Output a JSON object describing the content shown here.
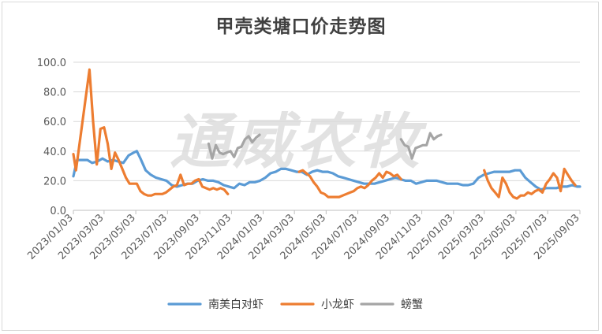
{
  "chart_data": {
    "type": "line",
    "title": "甲壳类塘口价走势图",
    "watermark": "通威农牧",
    "xlabel": "",
    "ylabel": "",
    "ylim": [
      0,
      100
    ],
    "yticks": [
      "0.0",
      "20.0",
      "40.0",
      "60.0",
      "80.0",
      "100.0"
    ],
    "xticks": [
      "2023/01/03",
      "2023/03/03",
      "2023/05/03",
      "2023/07/03",
      "2023/09/03",
      "2023/11/03",
      "2024/01/03",
      "2024/03/03",
      "2024/05/03",
      "2024/07/03",
      "2024/09/03",
      "2024/11/03",
      "2025/01/03",
      "2025/03/03",
      "2025/05/03",
      "2025/07/03",
      "2025/09/03"
    ],
    "grid": "horizontal",
    "legend": "bottom",
    "series": [
      {
        "name": "南美白对虾",
        "color": "#5b9bd5",
        "points": [
          [
            "2023/01/03",
            23
          ],
          [
            "2023/01/10",
            34
          ],
          [
            "2023/01/20",
            34
          ],
          [
            "2023/01/30",
            34
          ],
          [
            "2023/02/08",
            32
          ],
          [
            "2023/02/18",
            33
          ],
          [
            "2023/02/28",
            35
          ],
          [
            "2023/03/10",
            33
          ],
          [
            "2023/03/20",
            34
          ],
          [
            "2023/03/30",
            33
          ],
          [
            "2023/04/09",
            32
          ],
          [
            "2023/04/19",
            37
          ],
          [
            "2023/04/29",
            39
          ],
          [
            "2023/05/05",
            40
          ],
          [
            "2023/05/12",
            35
          ],
          [
            "2023/05/22",
            27
          ],
          [
            "2023/06/01",
            24
          ],
          [
            "2023/06/11",
            22
          ],
          [
            "2023/06/21",
            21
          ],
          [
            "2023/07/01",
            20
          ],
          [
            "2023/07/11",
            17
          ],
          [
            "2023/07/21",
            16
          ],
          [
            "2023/07/31",
            17
          ],
          [
            "2023/08/10",
            18
          ],
          [
            "2023/08/20",
            18
          ],
          [
            "2023/08/30",
            20
          ],
          [
            "2023/09/09",
            21
          ],
          [
            "2023/09/19",
            20
          ],
          [
            "2023/09/29",
            20
          ],
          [
            "2023/10/09",
            19
          ],
          [
            "2023/10/19",
            17
          ],
          [
            "2023/10/29",
            16
          ],
          [
            "2023/11/08",
            15
          ],
          [
            "2023/11/18",
            18
          ],
          [
            "2023/11/28",
            17
          ],
          [
            "2023/12/08",
            19
          ],
          [
            "2023/12/18",
            19
          ],
          [
            "2023/12/28",
            20
          ],
          [
            "2024/01/07",
            22
          ],
          [
            "2024/01/17",
            25
          ],
          [
            "2024/01/27",
            26
          ],
          [
            "2024/02/06",
            28
          ],
          [
            "2024/02/16",
            28
          ],
          [
            "2024/02/26",
            27
          ],
          [
            "2024/03/07",
            26
          ],
          [
            "2024/03/17",
            26
          ],
          [
            "2024/03/27",
            24
          ],
          [
            "2024/04/06",
            26
          ],
          [
            "2024/04/16",
            27
          ],
          [
            "2024/04/26",
            26
          ],
          [
            "2024/05/06",
            26
          ],
          [
            "2024/05/16",
            25
          ],
          [
            "2024/05/26",
            23
          ],
          [
            "2024/06/05",
            22
          ],
          [
            "2024/06/15",
            21
          ],
          [
            "2024/06/25",
            20
          ],
          [
            "2024/07/05",
            19
          ],
          [
            "2024/07/15",
            18
          ],
          [
            "2024/07/25",
            18
          ],
          [
            "2024/08/04",
            18
          ],
          [
            "2024/08/14",
            19
          ],
          [
            "2024/08/24",
            20
          ],
          [
            "2024/09/03",
            21
          ],
          [
            "2024/09/13",
            22
          ],
          [
            "2024/09/23",
            21
          ],
          [
            "2024/10/03",
            20
          ],
          [
            "2024/10/13",
            20
          ],
          [
            "2024/10/23",
            18
          ],
          [
            "2024/11/02",
            19
          ],
          [
            "2024/11/12",
            20
          ],
          [
            "2024/11/22",
            20
          ],
          [
            "2024/12/02",
            20
          ],
          [
            "2024/12/12",
            19
          ],
          [
            "2024/12/22",
            18
          ],
          [
            "2025/01/01",
            18
          ],
          [
            "2025/01/11",
            18
          ],
          [
            "2025/01/21",
            17
          ],
          [
            "2025/01/31",
            17
          ],
          [
            "2025/02/10",
            18
          ],
          [
            "2025/02/20",
            22
          ],
          [
            "2025/03/02",
            24
          ],
          [
            "2025/03/12",
            25
          ],
          [
            "2025/03/22",
            26
          ],
          [
            "2025/04/01",
            26
          ],
          [
            "2025/04/11",
            26
          ],
          [
            "2025/04/21",
            26
          ],
          [
            "2025/05/01",
            27
          ],
          [
            "2025/05/11",
            27
          ],
          [
            "2025/05/21",
            22
          ],
          [
            "2025/05/31",
            19
          ],
          [
            "2025/06/10",
            16
          ],
          [
            "2025/06/20",
            14
          ],
          [
            "2025/06/30",
            15
          ],
          [
            "2025/07/10",
            15
          ],
          [
            "2025/07/20",
            15
          ],
          [
            "2025/07/30",
            16
          ],
          [
            "2025/08/09",
            16
          ],
          [
            "2025/08/19",
            17
          ],
          [
            "2025/08/29",
            16
          ],
          [
            "2025/09/03",
            16
          ]
        ]
      },
      {
        "name": "小龙虾",
        "color": "#ed7d31",
        "points": [
          [
            "2023/01/03",
            38
          ],
          [
            "2023/01/08",
            27
          ],
          [
            "2023/02/03",
            95
          ],
          [
            "2023/02/10",
            60
          ],
          [
            "2023/02/17",
            31
          ],
          [
            "2023/02/24",
            55
          ],
          [
            "2023/03/03",
            56
          ],
          [
            "2023/03/10",
            45
          ],
          [
            "2023/03/17",
            28
          ],
          [
            "2023/03/24",
            39
          ],
          [
            "2023/03/31",
            34
          ],
          [
            "2023/04/07",
            28
          ],
          [
            "2023/04/14",
            22
          ],
          [
            "2023/04/21",
            18
          ],
          [
            "2023/04/28",
            18
          ],
          [
            "2023/05/05",
            18
          ],
          [
            "2023/05/12",
            13
          ],
          [
            "2023/05/19",
            11
          ],
          [
            "2023/05/26",
            10
          ],
          [
            "2023/06/02",
            10
          ],
          [
            "2023/06/09",
            11
          ],
          [
            "2023/06/16",
            11
          ],
          [
            "2023/06/23",
            11
          ],
          [
            "2023/06/30",
            12
          ],
          [
            "2023/07/07",
            14
          ],
          [
            "2023/07/14",
            16
          ],
          [
            "2023/07/21",
            17
          ],
          [
            "2023/07/28",
            24
          ],
          [
            "2023/08/04",
            17
          ],
          [
            "2023/08/11",
            18
          ],
          [
            "2023/08/18",
            18
          ],
          [
            "2023/08/25",
            20
          ],
          [
            "2023/09/01",
            21
          ],
          [
            "2023/09/08",
            16
          ],
          [
            "2023/09/15",
            15
          ],
          [
            "2023/09/22",
            14
          ],
          [
            "2023/09/29",
            15
          ],
          [
            "2023/10/06",
            14
          ],
          [
            "2023/10/13",
            15
          ],
          [
            "2023/10/20",
            14
          ],
          [
            "2023/10/27",
            11
          ],
          [
            null,
            null
          ],
          [
            "2024/03/12",
            26
          ],
          [
            "2024/03/19",
            27
          ],
          [
            "2024/03/26",
            25
          ],
          [
            "2024/04/02",
            23
          ],
          [
            "2024/04/09",
            19
          ],
          [
            "2024/04/16",
            16
          ],
          [
            "2024/04/23",
            12
          ],
          [
            "2024/04/30",
            11
          ],
          [
            "2024/05/07",
            9
          ],
          [
            "2024/05/14",
            9
          ],
          [
            "2024/05/21",
            9
          ],
          [
            "2024/05/28",
            9
          ],
          [
            "2024/06/04",
            10
          ],
          [
            "2024/06/11",
            11
          ],
          [
            "2024/06/18",
            12
          ],
          [
            "2024/06/25",
            13
          ],
          [
            "2024/07/02",
            15
          ],
          [
            "2024/07/09",
            16
          ],
          [
            "2024/07/16",
            15
          ],
          [
            "2024/07/23",
            17
          ],
          [
            "2024/07/30",
            20
          ],
          [
            "2024/08/06",
            22
          ],
          [
            "2024/08/13",
            25
          ],
          [
            "2024/08/20",
            22
          ],
          [
            "2024/08/27",
            26
          ],
          [
            "2024/09/03",
            25
          ],
          [
            "2024/09/10",
            23
          ],
          [
            "2024/09/17",
            24
          ],
          [
            "2024/09/24",
            21
          ],
          [
            null,
            null
          ],
          [
            "2025/03/03",
            27
          ],
          [
            "2025/03/10",
            20
          ],
          [
            "2025/03/17",
            15
          ],
          [
            "2025/03/24",
            12
          ],
          [
            "2025/03/31",
            9
          ],
          [
            "2025/04/07",
            22
          ],
          [
            "2025/04/14",
            18
          ],
          [
            "2025/04/21",
            12
          ],
          [
            "2025/04/28",
            9
          ],
          [
            "2025/05/05",
            8
          ],
          [
            "2025/05/12",
            10
          ],
          [
            "2025/05/19",
            10
          ],
          [
            "2025/05/26",
            12
          ],
          [
            "2025/06/02",
            11
          ],
          [
            "2025/06/09",
            13
          ],
          [
            "2025/06/16",
            14
          ],
          [
            "2025/06/23",
            12
          ],
          [
            "2025/06/30",
            18
          ],
          [
            "2025/07/07",
            21
          ],
          [
            "2025/07/14",
            25
          ],
          [
            "2025/07/21",
            22
          ],
          [
            "2025/07/28",
            13
          ],
          [
            "2025/08/04",
            28
          ],
          [
            "2025/08/11",
            24
          ],
          [
            "2025/08/18",
            20
          ],
          [
            "2025/08/25",
            17
          ]
        ]
      },
      {
        "name": "螃蟹",
        "color": "#a5a5a5",
        "points": [
          [
            "2023/09/20",
            45
          ],
          [
            "2023/09/27",
            35
          ],
          [
            "2023/10/04",
            44
          ],
          [
            "2023/10/11",
            39
          ],
          [
            "2023/10/18",
            38
          ],
          [
            "2023/10/25",
            39
          ],
          [
            "2023/11/01",
            40
          ],
          [
            "2023/11/08",
            36
          ],
          [
            "2023/11/15",
            42
          ],
          [
            "2023/11/22",
            43
          ],
          [
            "2023/11/29",
            48
          ],
          [
            "2023/12/06",
            50
          ],
          [
            "2023/12/13",
            46
          ],
          [
            "2023/12/20",
            49
          ],
          [
            "2023/12/27",
            51
          ],
          [
            null,
            null
          ],
          [
            "2024/09/24",
            48
          ],
          [
            "2024/10/01",
            44
          ],
          [
            "2024/10/08",
            43
          ],
          [
            "2024/10/15",
            35
          ],
          [
            "2024/10/22",
            42
          ],
          [
            "2024/10/29",
            43
          ],
          [
            "2024/11/05",
            44
          ],
          [
            "2024/11/12",
            44
          ],
          [
            "2024/11/19",
            52
          ],
          [
            "2024/11/26",
            48
          ],
          [
            "2024/12/03",
            50
          ],
          [
            "2024/12/10",
            51
          ]
        ]
      }
    ]
  }
}
